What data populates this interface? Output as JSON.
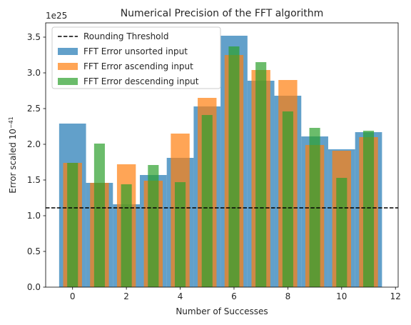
{
  "chart_data": {
    "type": "bar",
    "title": "Numerical Precision of the FFT algorithm",
    "xlabel": "Number of Successes",
    "ylabel_prefix": "Error scaled 10",
    "ylabel_exponent": "−41",
    "offset_text": "1e25",
    "xlim": [
      -1.0,
      12.1
    ],
    "ylim": [
      0,
      3.7
    ],
    "xticks": [
      0,
      2,
      4,
      6,
      8,
      10,
      12
    ],
    "yticks": [
      "0.0",
      "0.5",
      "1.0",
      "1.5",
      "2.0",
      "2.5",
      "3.0",
      "3.5"
    ],
    "categories": [
      0,
      1,
      2,
      3,
      4,
      5,
      6,
      7,
      8,
      9,
      10,
      11
    ],
    "series": [
      {
        "name": "FFT Error unsorted input",
        "color": "#1f77b4",
        "opacity": 0.7,
        "width": 1.0,
        "values": [
          2.29,
          1.46,
          1.16,
          1.57,
          1.81,
          2.53,
          3.52,
          2.89,
          2.68,
          2.11,
          1.93,
          2.17
        ]
      },
      {
        "name": "FFT Error ascending input",
        "color": "#ff7f0e",
        "opacity": 0.7,
        "width": 0.7,
        "values": [
          1.74,
          1.46,
          1.72,
          1.49,
          2.15,
          2.65,
          3.25,
          3.04,
          2.9,
          1.99,
          1.91,
          2.1
        ]
      },
      {
        "name": "FFT Error descending input",
        "color": "#2ca02c",
        "opacity": 0.7,
        "width": 0.4,
        "values": [
          1.74,
          2.01,
          1.44,
          1.71,
          1.47,
          2.41,
          3.37,
          3.15,
          2.46,
          2.23,
          1.53,
          2.19
        ]
      }
    ],
    "threshold": {
      "name": "Rounding Threshold",
      "value": 1.11,
      "color": "#000000",
      "style": "dashed"
    },
    "legend_position": "top-left",
    "grid": false
  }
}
